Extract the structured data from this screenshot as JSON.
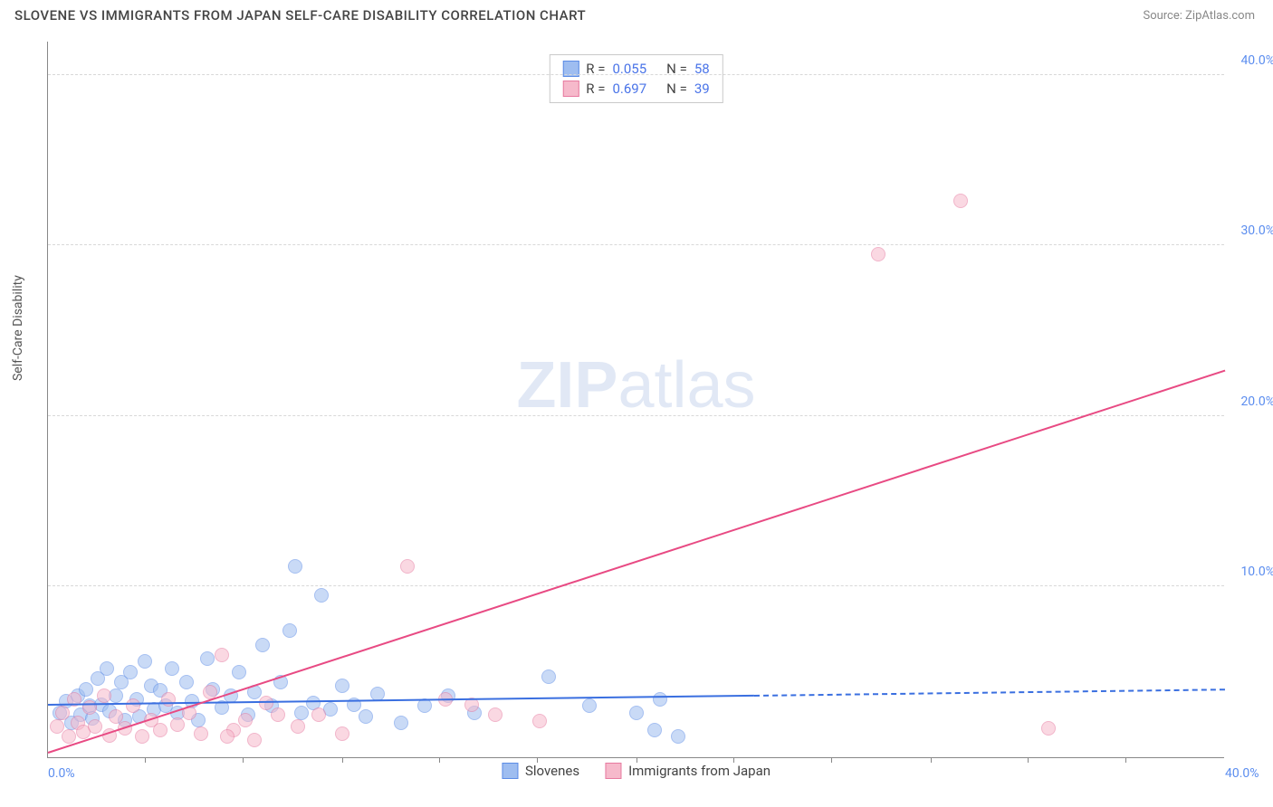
{
  "title": "SLOVENE VS IMMIGRANTS FROM JAPAN SELF-CARE DISABILITY CORRELATION CHART",
  "source": "Source: ZipAtlas.com",
  "ylabel": "Self-Care Disability",
  "watermark_bold": "ZIP",
  "watermark_rest": "atlas",
  "chart": {
    "type": "scatter",
    "xlim": [
      0,
      40
    ],
    "ylim": [
      0,
      42
    ],
    "x_ticks_label": {
      "first": "0.0%",
      "last": "40.0%"
    },
    "x_minor_ticks": [
      3.3,
      6.6,
      10,
      13.3,
      16.6,
      20,
      23.3,
      26.6,
      30,
      33.3,
      36.6
    ],
    "y_grid": [
      {
        "v": 10,
        "label": "10.0%"
      },
      {
        "v": 20,
        "label": "20.0%"
      },
      {
        "v": 30,
        "label": "30.0%"
      },
      {
        "v": 40,
        "label": "40.0%"
      }
    ],
    "background_color": "#ffffff",
    "grid_color": "#d8d8d8",
    "axis_color": "#888888",
    "tick_label_color": "#5b8def",
    "marker_radius": 8,
    "marker_opacity": 0.55,
    "series": [
      {
        "name": "Slovenes",
        "fill": "#9ebdf0",
        "stroke": "#5c8ce6",
        "trend": {
          "y0": 3.0,
          "y40": 3.9,
          "solid_until_x": 24,
          "color": "#3a6fe0",
          "width": 2.2
        },
        "points": [
          [
            0.4,
            2.6
          ],
          [
            0.6,
            3.3
          ],
          [
            0.8,
            2.0
          ],
          [
            1.0,
            3.6
          ],
          [
            1.1,
            2.5
          ],
          [
            1.3,
            4.0
          ],
          [
            1.4,
            3.0
          ],
          [
            1.5,
            2.3
          ],
          [
            1.7,
            4.6
          ],
          [
            1.8,
            3.1
          ],
          [
            2.0,
            5.2
          ],
          [
            2.1,
            2.7
          ],
          [
            2.3,
            3.6
          ],
          [
            2.5,
            4.4
          ],
          [
            2.6,
            2.2
          ],
          [
            2.8,
            5.0
          ],
          [
            3.0,
            3.4
          ],
          [
            3.1,
            2.4
          ],
          [
            3.3,
            5.6
          ],
          [
            3.5,
            4.2
          ],
          [
            3.6,
            2.8
          ],
          [
            3.8,
            3.9
          ],
          [
            4.0,
            3.0
          ],
          [
            4.2,
            5.2
          ],
          [
            4.4,
            2.6
          ],
          [
            4.7,
            4.4
          ],
          [
            4.9,
            3.3
          ],
          [
            5.1,
            2.2
          ],
          [
            5.4,
            5.8
          ],
          [
            5.6,
            4.0
          ],
          [
            5.9,
            2.9
          ],
          [
            6.2,
            3.6
          ],
          [
            6.5,
            5.0
          ],
          [
            6.8,
            2.5
          ],
          [
            7.0,
            3.8
          ],
          [
            7.3,
            6.6
          ],
          [
            7.6,
            3.0
          ],
          [
            7.9,
            4.4
          ],
          [
            8.2,
            7.4
          ],
          [
            8.4,
            11.2
          ],
          [
            8.6,
            2.6
          ],
          [
            9.0,
            3.2
          ],
          [
            9.3,
            9.5
          ],
          [
            9.6,
            2.8
          ],
          [
            10.0,
            4.2
          ],
          [
            10.4,
            3.1
          ],
          [
            10.8,
            2.4
          ],
          [
            11.2,
            3.7
          ],
          [
            12.0,
            2.0
          ],
          [
            12.8,
            3.0
          ],
          [
            13.6,
            3.6
          ],
          [
            14.5,
            2.6
          ],
          [
            17.0,
            4.7
          ],
          [
            18.4,
            3.0
          ],
          [
            20.0,
            2.6
          ],
          [
            20.6,
            1.6
          ],
          [
            20.8,
            3.4
          ],
          [
            21.4,
            1.2
          ]
        ]
      },
      {
        "name": "Immigrants from Japan",
        "fill": "#f6b9cb",
        "stroke": "#e77aa0",
        "trend": {
          "y0": 0.2,
          "y40": 22.6,
          "solid_until_x": 40,
          "color": "#e84a83",
          "width": 2.2
        },
        "points": [
          [
            0.3,
            1.8
          ],
          [
            0.5,
            2.6
          ],
          [
            0.7,
            1.2
          ],
          [
            0.9,
            3.4
          ],
          [
            1.0,
            2.0
          ],
          [
            1.2,
            1.5
          ],
          [
            1.4,
            2.9
          ],
          [
            1.6,
            1.8
          ],
          [
            1.9,
            3.6
          ],
          [
            2.1,
            1.3
          ],
          [
            2.3,
            2.4
          ],
          [
            2.6,
            1.7
          ],
          [
            2.9,
            3.0
          ],
          [
            3.2,
            1.2
          ],
          [
            3.5,
            2.2
          ],
          [
            3.8,
            1.6
          ],
          [
            4.1,
            3.4
          ],
          [
            4.4,
            1.9
          ],
          [
            4.8,
            2.6
          ],
          [
            5.2,
            1.4
          ],
          [
            5.5,
            3.8
          ],
          [
            5.9,
            6.0
          ],
          [
            6.3,
            1.6
          ],
          [
            6.7,
            2.2
          ],
          [
            7.0,
            1.0
          ],
          [
            7.4,
            3.2
          ],
          [
            7.8,
            2.5
          ],
          [
            8.5,
            1.8
          ],
          [
            9.2,
            2.5
          ],
          [
            10.0,
            1.4
          ],
          [
            12.2,
            11.2
          ],
          [
            13.5,
            3.4
          ],
          [
            14.4,
            3.1
          ],
          [
            15.2,
            2.5
          ],
          [
            16.7,
            2.1
          ],
          [
            28.2,
            29.5
          ],
          [
            31.0,
            32.6
          ],
          [
            34.0,
            1.7
          ],
          [
            6.1,
            1.2
          ]
        ]
      }
    ],
    "stat_legend": [
      {
        "swatch_fill": "#9ebdf0",
        "swatch_stroke": "#5c8ce6",
        "r_label": "R =",
        "r": "0.055",
        "n_label": "N =",
        "n": "58"
      },
      {
        "swatch_fill": "#f6b9cb",
        "swatch_stroke": "#e77aa0",
        "r_label": "R =",
        "r": "0.697",
        "n_label": "N =",
        "n": "39"
      }
    ],
    "bottom_legend": [
      {
        "swatch_fill": "#9ebdf0",
        "swatch_stroke": "#5c8ce6",
        "label": "Slovenes"
      },
      {
        "swatch_fill": "#f6b9cb",
        "swatch_stroke": "#e77aa0",
        "label": "Immigrants from Japan"
      }
    ]
  }
}
